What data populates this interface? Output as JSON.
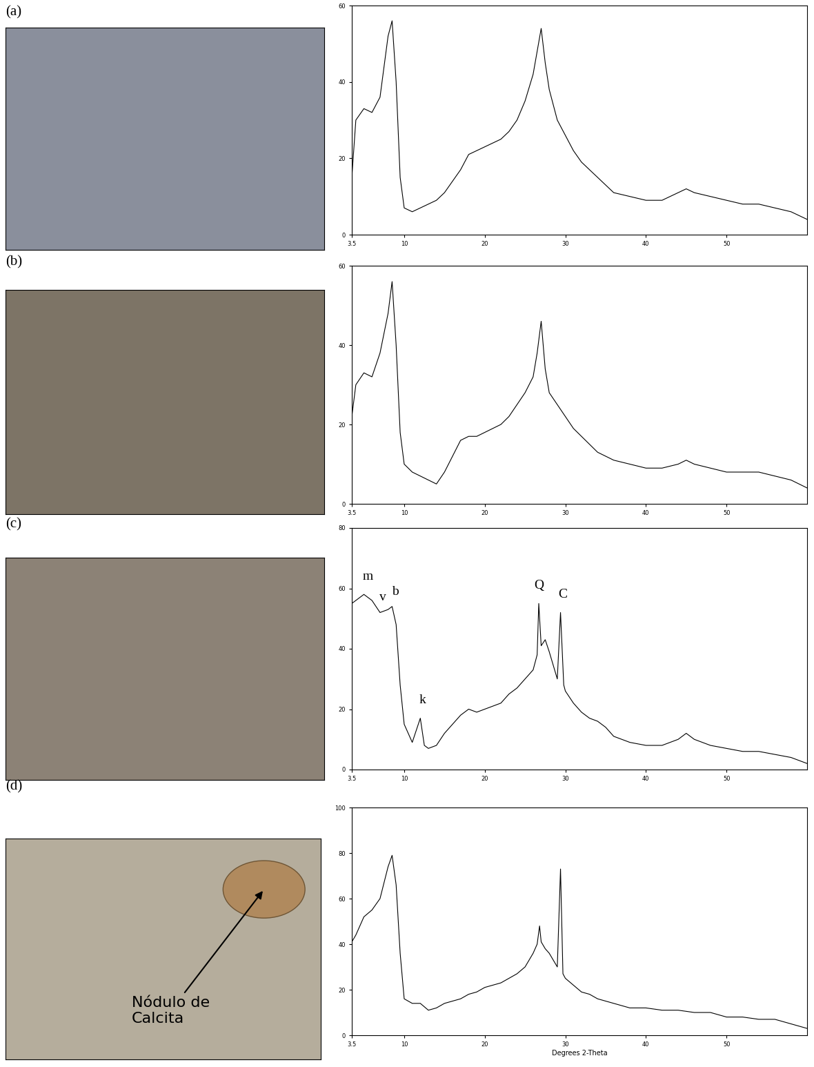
{
  "chart_data": [
    {
      "type": "line",
      "title": "(a)",
      "color": "#000000",
      "x": [
        3.5,
        4,
        5,
        6,
        7,
        8,
        8.5,
        9,
        9.5,
        10,
        11,
        12,
        13,
        14,
        15,
        16,
        17,
        18,
        19,
        20,
        21,
        22,
        23,
        24,
        25,
        26,
        26.5,
        27,
        27.5,
        28,
        29,
        30,
        31,
        32,
        33,
        34,
        35,
        36,
        38,
        40,
        42,
        44,
        45,
        46,
        48,
        50,
        52,
        54,
        56,
        58,
        60
      ],
      "values": [
        15,
        30,
        33,
        32,
        36,
        52,
        56,
        40,
        15,
        7,
        6,
        7,
        8,
        9,
        11,
        14,
        17,
        21,
        22,
        23,
        24,
        25,
        27,
        30,
        35,
        42,
        48,
        54,
        45,
        38,
        30,
        26,
        22,
        19,
        17,
        15,
        13,
        11,
        10,
        9,
        9,
        11,
        12,
        11,
        10,
        9,
        8,
        8,
        7,
        6,
        4
      ],
      "xlim": [
        3.5,
        60
      ],
      "xticks": [
        3.5,
        10,
        20,
        30,
        40,
        50
      ],
      "ylim": [
        0,
        60
      ],
      "yticks": [
        0,
        20,
        40,
        60
      ]
    },
    {
      "type": "line",
      "title": "(b)",
      "color": "#000000",
      "x": [
        3.5,
        4,
        5,
        6,
        7,
        8,
        8.5,
        9,
        9.5,
        10,
        11,
        12,
        13,
        14,
        15,
        16,
        17,
        18,
        19,
        20,
        21,
        22,
        23,
        24,
        25,
        26,
        26.5,
        27,
        27.5,
        28,
        29,
        30,
        31,
        32,
        33,
        34,
        35,
        36,
        38,
        40,
        42,
        44,
        45,
        46,
        48,
        50,
        52,
        54,
        56,
        58,
        60
      ],
      "values": [
        22,
        30,
        33,
        32,
        38,
        48,
        56,
        40,
        18,
        10,
        8,
        7,
        6,
        5,
        8,
        12,
        16,
        17,
        17,
        18,
        19,
        20,
        22,
        25,
        28,
        32,
        38,
        46,
        34,
        28,
        25,
        22,
        19,
        17,
        15,
        13,
        12,
        11,
        10,
        9,
        9,
        10,
        11,
        10,
        9,
        8,
        8,
        8,
        7,
        6,
        4
      ],
      "xlim": [
        3.5,
        60
      ],
      "xticks": [
        3.5,
        10,
        20,
        30,
        40,
        50
      ],
      "ylim": [
        0,
        60
      ],
      "yticks": [
        0,
        20,
        40,
        60
      ]
    },
    {
      "type": "line",
      "title": "(c)",
      "color": "#000000",
      "x": [
        3.5,
        5,
        6,
        7,
        8,
        8.5,
        9,
        9.5,
        10,
        11,
        12,
        12.5,
        13,
        14,
        15,
        16,
        17,
        18,
        19,
        20,
        21,
        22,
        23,
        24,
        25,
        26,
        26.5,
        26.7,
        27,
        27.5,
        28,
        29,
        29.4,
        29.8,
        30,
        31,
        32,
        33,
        34,
        35,
        36,
        38,
        40,
        42,
        44,
        45,
        46,
        48,
        50,
        52,
        54,
        56,
        58,
        60
      ],
      "values": [
        55,
        58,
        56,
        52,
        53,
        54,
        48,
        28,
        15,
        9,
        17,
        8,
        7,
        8,
        12,
        15,
        18,
        20,
        19,
        20,
        21,
        22,
        25,
        27,
        30,
        33,
        38,
        55,
        41,
        43,
        39,
        30,
        52,
        28,
        26,
        22,
        19,
        17,
        16,
        14,
        11,
        9,
        8,
        8,
        10,
        12,
        10,
        8,
        7,
        6,
        6,
        5,
        4,
        2
      ],
      "xlim": [
        3.5,
        60
      ],
      "xticks": [
        3.5,
        10,
        20,
        30,
        40,
        50
      ],
      "ylim": [
        0,
        80
      ],
      "yticks": [
        0,
        20,
        40,
        60,
        80
      ],
      "annotations": [
        {
          "text": "m",
          "x": 5.5,
          "y": 62
        },
        {
          "text": "v",
          "x": 7.3,
          "y": 55
        },
        {
          "text": "b",
          "x": 8.9,
          "y": 57
        },
        {
          "text": "k",
          "x": 12.3,
          "y": 21
        },
        {
          "text": "Q",
          "x": 26.7,
          "y": 59
        },
        {
          "text": "C",
          "x": 29.7,
          "y": 56
        }
      ]
    },
    {
      "type": "line",
      "title": "(d)",
      "color": "#000000",
      "x": [
        3.5,
        4,
        5,
        6,
        7,
        8,
        8.5,
        9,
        9.5,
        10,
        11,
        12,
        13,
        14,
        15,
        16,
        17,
        18,
        19,
        20,
        21,
        22,
        23,
        24,
        25,
        26,
        26.5,
        26.8,
        27,
        27.5,
        28,
        29,
        29.4,
        29.7,
        30,
        31,
        32,
        33,
        34,
        35,
        36,
        38,
        40,
        42,
        44,
        46,
        48,
        50,
        52,
        54,
        56,
        58,
        60
      ],
      "values": [
        41,
        44,
        52,
        55,
        60,
        74,
        79,
        66,
        36,
        16,
        14,
        14,
        11,
        12,
        14,
        15,
        16,
        18,
        19,
        21,
        22,
        23,
        25,
        27,
        30,
        36,
        40,
        48,
        41,
        38,
        36,
        30,
        73,
        27,
        25,
        22,
        19,
        18,
        16,
        15,
        14,
        12,
        12,
        11,
        11,
        10,
        10,
        8,
        8,
        7,
        7,
        5,
        3
      ],
      "xlim": [
        3.5,
        60
      ],
      "xticks": [
        3.5,
        10,
        20,
        30,
        40,
        50
      ],
      "ylim": [
        0,
        100
      ],
      "yticks": [
        0,
        20,
        40,
        60,
        80,
        100
      ],
      "x_label": "Degrees 2-Theta"
    }
  ],
  "micrograph": {
    "panel": "(d)",
    "annotation": "Nódulo de\nCalcita"
  }
}
